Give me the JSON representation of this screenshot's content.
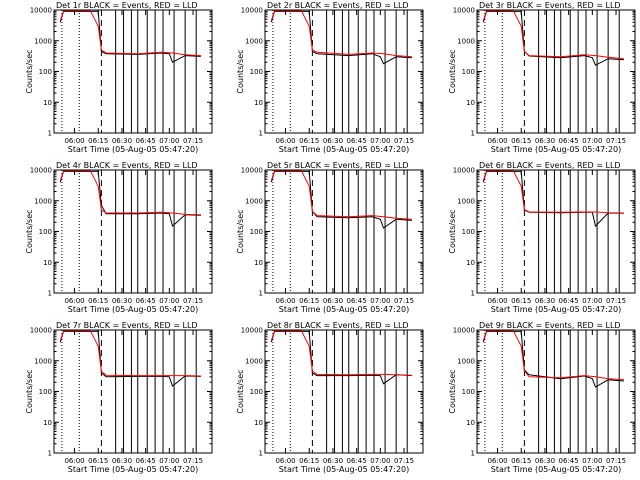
{
  "figure": {
    "ylabel": "Counts/sec",
    "xlabel": "Start Time (05-Aug-05 05:47:20)",
    "y_ticks": [
      "1",
      "10",
      "100",
      "1000",
      "10000"
    ],
    "x_ticks": [
      "06:00",
      "06:15",
      "06:30",
      "06:45",
      "07:00",
      "07:15"
    ],
    "colors": {
      "events": "#000000",
      "lld": "#ff0000",
      "background": "#ffffff"
    }
  },
  "chart_data": [
    {
      "type": "line",
      "title": "Det 1r  BLACK = Events, RED = LLD",
      "xlabel": "Start Time (05-Aug-05 05:47:20)",
      "ylabel": "Counts/sec",
      "yscale": "log",
      "ylim": [
        1,
        10000
      ],
      "grid": false,
      "series": [
        {
          "name": "Events",
          "x": [
            "05:51",
            "05:53",
            "06:15",
            "06:17",
            "06:20",
            "06:40",
            "06:55",
            "07:00",
            "07:02",
            "07:10",
            "07:20"
          ],
          "y": [
            4000,
            9000,
            9000,
            450,
            380,
            360,
            400,
            380,
            200,
            330,
            310
          ]
        },
        {
          "name": "LLD",
          "x": [
            "05:51",
            "05:53",
            "06:10",
            "06:15",
            "06:17",
            "06:20",
            "06:40",
            "06:55",
            "07:02",
            "07:10",
            "07:20"
          ],
          "y": [
            4500,
            9500,
            9500,
            3000,
            500,
            400,
            380,
            420,
            400,
            350,
            330
          ]
        }
      ]
    },
    {
      "type": "line",
      "title": "Det 2r  BLACK = Events, RED = LLD",
      "xlabel": "Start Time (05-Aug-05 05:47:20)",
      "ylabel": "Counts/sec",
      "yscale": "log",
      "ylim": [
        1,
        10000
      ],
      "grid": false,
      "series": [
        {
          "name": "Events",
          "x": [
            "05:51",
            "05:53",
            "06:15",
            "06:17",
            "06:20",
            "06:40",
            "06:55",
            "07:00",
            "07:02",
            "07:10",
            "07:20"
          ],
          "y": [
            4000,
            9000,
            9000,
            450,
            380,
            330,
            380,
            300,
            180,
            300,
            280
          ]
        },
        {
          "name": "LLD",
          "x": [
            "05:51",
            "05:53",
            "06:10",
            "06:15",
            "06:17",
            "06:20",
            "06:40",
            "06:55",
            "07:02",
            "07:10",
            "07:20"
          ],
          "y": [
            4500,
            9500,
            9500,
            3000,
            500,
            420,
            360,
            400,
            380,
            330,
            300
          ]
        }
      ]
    },
    {
      "type": "line",
      "title": "Det 3r  BLACK = Events, RED = LLD",
      "xlabel": "Start Time (05-Aug-05 05:47:20)",
      "ylabel": "Counts/sec",
      "yscale": "log",
      "ylim": [
        1,
        10000
      ],
      "grid": false,
      "series": [
        {
          "name": "Events",
          "x": [
            "05:51",
            "05:53",
            "06:15",
            "06:17",
            "06:20",
            "06:40",
            "06:55",
            "07:00",
            "07:02",
            "07:10",
            "07:20"
          ],
          "y": [
            4000,
            9000,
            9000,
            450,
            320,
            280,
            330,
            280,
            160,
            260,
            240
          ]
        },
        {
          "name": "LLD",
          "x": [
            "05:51",
            "05:53",
            "06:10",
            "06:15",
            "06:17",
            "06:20",
            "06:40",
            "06:55",
            "07:02",
            "07:10",
            "07:20"
          ],
          "y": [
            4500,
            9500,
            9500,
            3000,
            450,
            330,
            300,
            350,
            330,
            290,
            260
          ]
        }
      ]
    },
    {
      "type": "line",
      "title": "Det 4r  BLACK = Events, RED = LLD",
      "xlabel": "Start Time (05-Aug-05 05:47:20)",
      "ylabel": "Counts/sec",
      "yscale": "log",
      "ylim": [
        1,
        10000
      ],
      "grid": false,
      "series": [
        {
          "name": "Events",
          "x": [
            "05:51",
            "05:53",
            "06:15",
            "06:17",
            "06:20",
            "06:40",
            "06:55",
            "07:00",
            "07:02",
            "07:10",
            "07:20"
          ],
          "y": [
            4000,
            9000,
            9000,
            700,
            380,
            380,
            400,
            380,
            150,
            350,
            340
          ]
        },
        {
          "name": "LLD",
          "x": [
            "05:51",
            "05:53",
            "06:10",
            "06:15",
            "06:17",
            "06:20",
            "06:40",
            "06:55",
            "07:02",
            "07:10",
            "07:20"
          ],
          "y": [
            4500,
            9500,
            9500,
            3000,
            500,
            400,
            400,
            420,
            400,
            360,
            350
          ]
        }
      ]
    },
    {
      "type": "line",
      "title": "Det 5r  BLACK = Events, RED = LLD",
      "xlabel": "Start Time (05-Aug-05 05:47:20)",
      "ylabel": "Counts/sec",
      "yscale": "log",
      "ylim": [
        1,
        10000
      ],
      "grid": false,
      "series": [
        {
          "name": "Events",
          "x": [
            "05:51",
            "05:53",
            "06:15",
            "06:17",
            "06:20",
            "06:40",
            "06:55",
            "07:00",
            "07:02",
            "07:10",
            "07:20"
          ],
          "y": [
            4000,
            9000,
            9000,
            450,
            300,
            280,
            300,
            250,
            130,
            250,
            230
          ]
        },
        {
          "name": "LLD",
          "x": [
            "05:51",
            "05:53",
            "06:10",
            "06:15",
            "06:17",
            "06:20",
            "06:40",
            "06:55",
            "07:02",
            "07:10",
            "07:20"
          ],
          "y": [
            4500,
            9500,
            9500,
            3000,
            450,
            330,
            300,
            330,
            300,
            270,
            250
          ]
        }
      ]
    },
    {
      "type": "line",
      "title": "Det 6r  BLACK = Events, RED = LLD",
      "xlabel": "Start Time (05-Aug-05 05:47:20)",
      "ylabel": "Counts/sec",
      "yscale": "log",
      "ylim": [
        1,
        10000
      ],
      "grid": false,
      "series": [
        {
          "name": "Events",
          "x": [
            "05:51",
            "05:53",
            "06:15",
            "06:17",
            "06:20",
            "06:40",
            "06:55",
            "07:00",
            "07:02",
            "07:10",
            "07:20"
          ],
          "y": [
            4000,
            9000,
            9000,
            500,
            420,
            410,
            420,
            420,
            150,
            400,
            390
          ]
        },
        {
          "name": "LLD",
          "x": [
            "05:51",
            "05:53",
            "06:10",
            "06:15",
            "06:17",
            "06:20",
            "06:40",
            "06:55",
            "07:02",
            "07:10",
            "07:20"
          ],
          "y": [
            4500,
            9500,
            9500,
            3000,
            520,
            430,
            420,
            430,
            430,
            410,
            400
          ]
        }
      ]
    },
    {
      "type": "line",
      "title": "Det 7r  BLACK = Events, RED = LLD",
      "xlabel": "Start Time (05-Aug-05 05:47:20)",
      "ylabel": "Counts/sec",
      "yscale": "log",
      "ylim": [
        1,
        10000
      ],
      "grid": false,
      "series": [
        {
          "name": "Events",
          "x": [
            "05:51",
            "05:53",
            "06:15",
            "06:17",
            "06:20",
            "06:40",
            "06:55",
            "07:00",
            "07:02",
            "07:10",
            "07:20"
          ],
          "y": [
            4000,
            9000,
            9000,
            400,
            300,
            310,
            310,
            300,
            150,
            320,
            310
          ]
        },
        {
          "name": "LLD",
          "x": [
            "05:51",
            "05:53",
            "06:10",
            "06:15",
            "06:17",
            "06:20",
            "06:40",
            "06:55",
            "07:02",
            "07:10",
            "07:20"
          ],
          "y": [
            4500,
            9500,
            9500,
            3000,
            450,
            340,
            330,
            330,
            330,
            330,
            320
          ]
        }
      ]
    },
    {
      "type": "line",
      "title": "Det 8r  BLACK = Events, RED = LLD",
      "xlabel": "Start Time (05-Aug-05 05:47:20)",
      "ylabel": "Counts/sec",
      "yscale": "log",
      "ylim": [
        1,
        10000
      ],
      "grid": false,
      "series": [
        {
          "name": "Events",
          "x": [
            "05:51",
            "05:53",
            "06:15",
            "06:17",
            "06:20",
            "06:40",
            "06:55",
            "07:00",
            "07:02",
            "07:10",
            "07:20"
          ],
          "y": [
            4000,
            9000,
            9000,
            400,
            330,
            330,
            340,
            330,
            180,
            350,
            330
          ]
        },
        {
          "name": "LLD",
          "x": [
            "05:51",
            "05:53",
            "06:10",
            "06:15",
            "06:17",
            "06:20",
            "06:40",
            "06:55",
            "07:02",
            "07:10",
            "07:20"
          ],
          "y": [
            4500,
            9500,
            9500,
            3000,
            460,
            360,
            350,
            360,
            360,
            350,
            340
          ]
        }
      ]
    },
    {
      "type": "line",
      "title": "Det 9r  BLACK = Events, RED = LLD",
      "xlabel": "Start Time (05-Aug-05 05:47:20)",
      "ylabel": "Counts/sec",
      "yscale": "log",
      "ylim": [
        1,
        10000
      ],
      "grid": false,
      "series": [
        {
          "name": "Events",
          "x": [
            "05:51",
            "05:53",
            "06:15",
            "06:17",
            "06:20",
            "06:40",
            "06:55",
            "07:00",
            "07:02",
            "07:10",
            "07:20"
          ],
          "y": [
            4000,
            9000,
            9000,
            500,
            350,
            260,
            320,
            260,
            140,
            240,
            220
          ]
        },
        {
          "name": "LLD",
          "x": [
            "05:51",
            "05:53",
            "06:10",
            "06:15",
            "06:17",
            "06:20",
            "06:40",
            "06:55",
            "07:02",
            "07:10",
            "07:20"
          ],
          "y": [
            4500,
            9500,
            9500,
            3000,
            470,
            300,
            280,
            330,
            300,
            260,
            240
          ]
        }
      ]
    }
  ],
  "markers": {
    "dotted": [
      "05:52",
      "06:03"
    ],
    "dashed": [
      "06:17"
    ],
    "solid": [
      "06:26",
      "06:31",
      "06:36",
      "06:40",
      "06:46",
      "06:51",
      "06:56",
      "07:03",
      "07:10",
      "07:17"
    ]
  },
  "x_range": [
    "05:47",
    "07:27"
  ]
}
